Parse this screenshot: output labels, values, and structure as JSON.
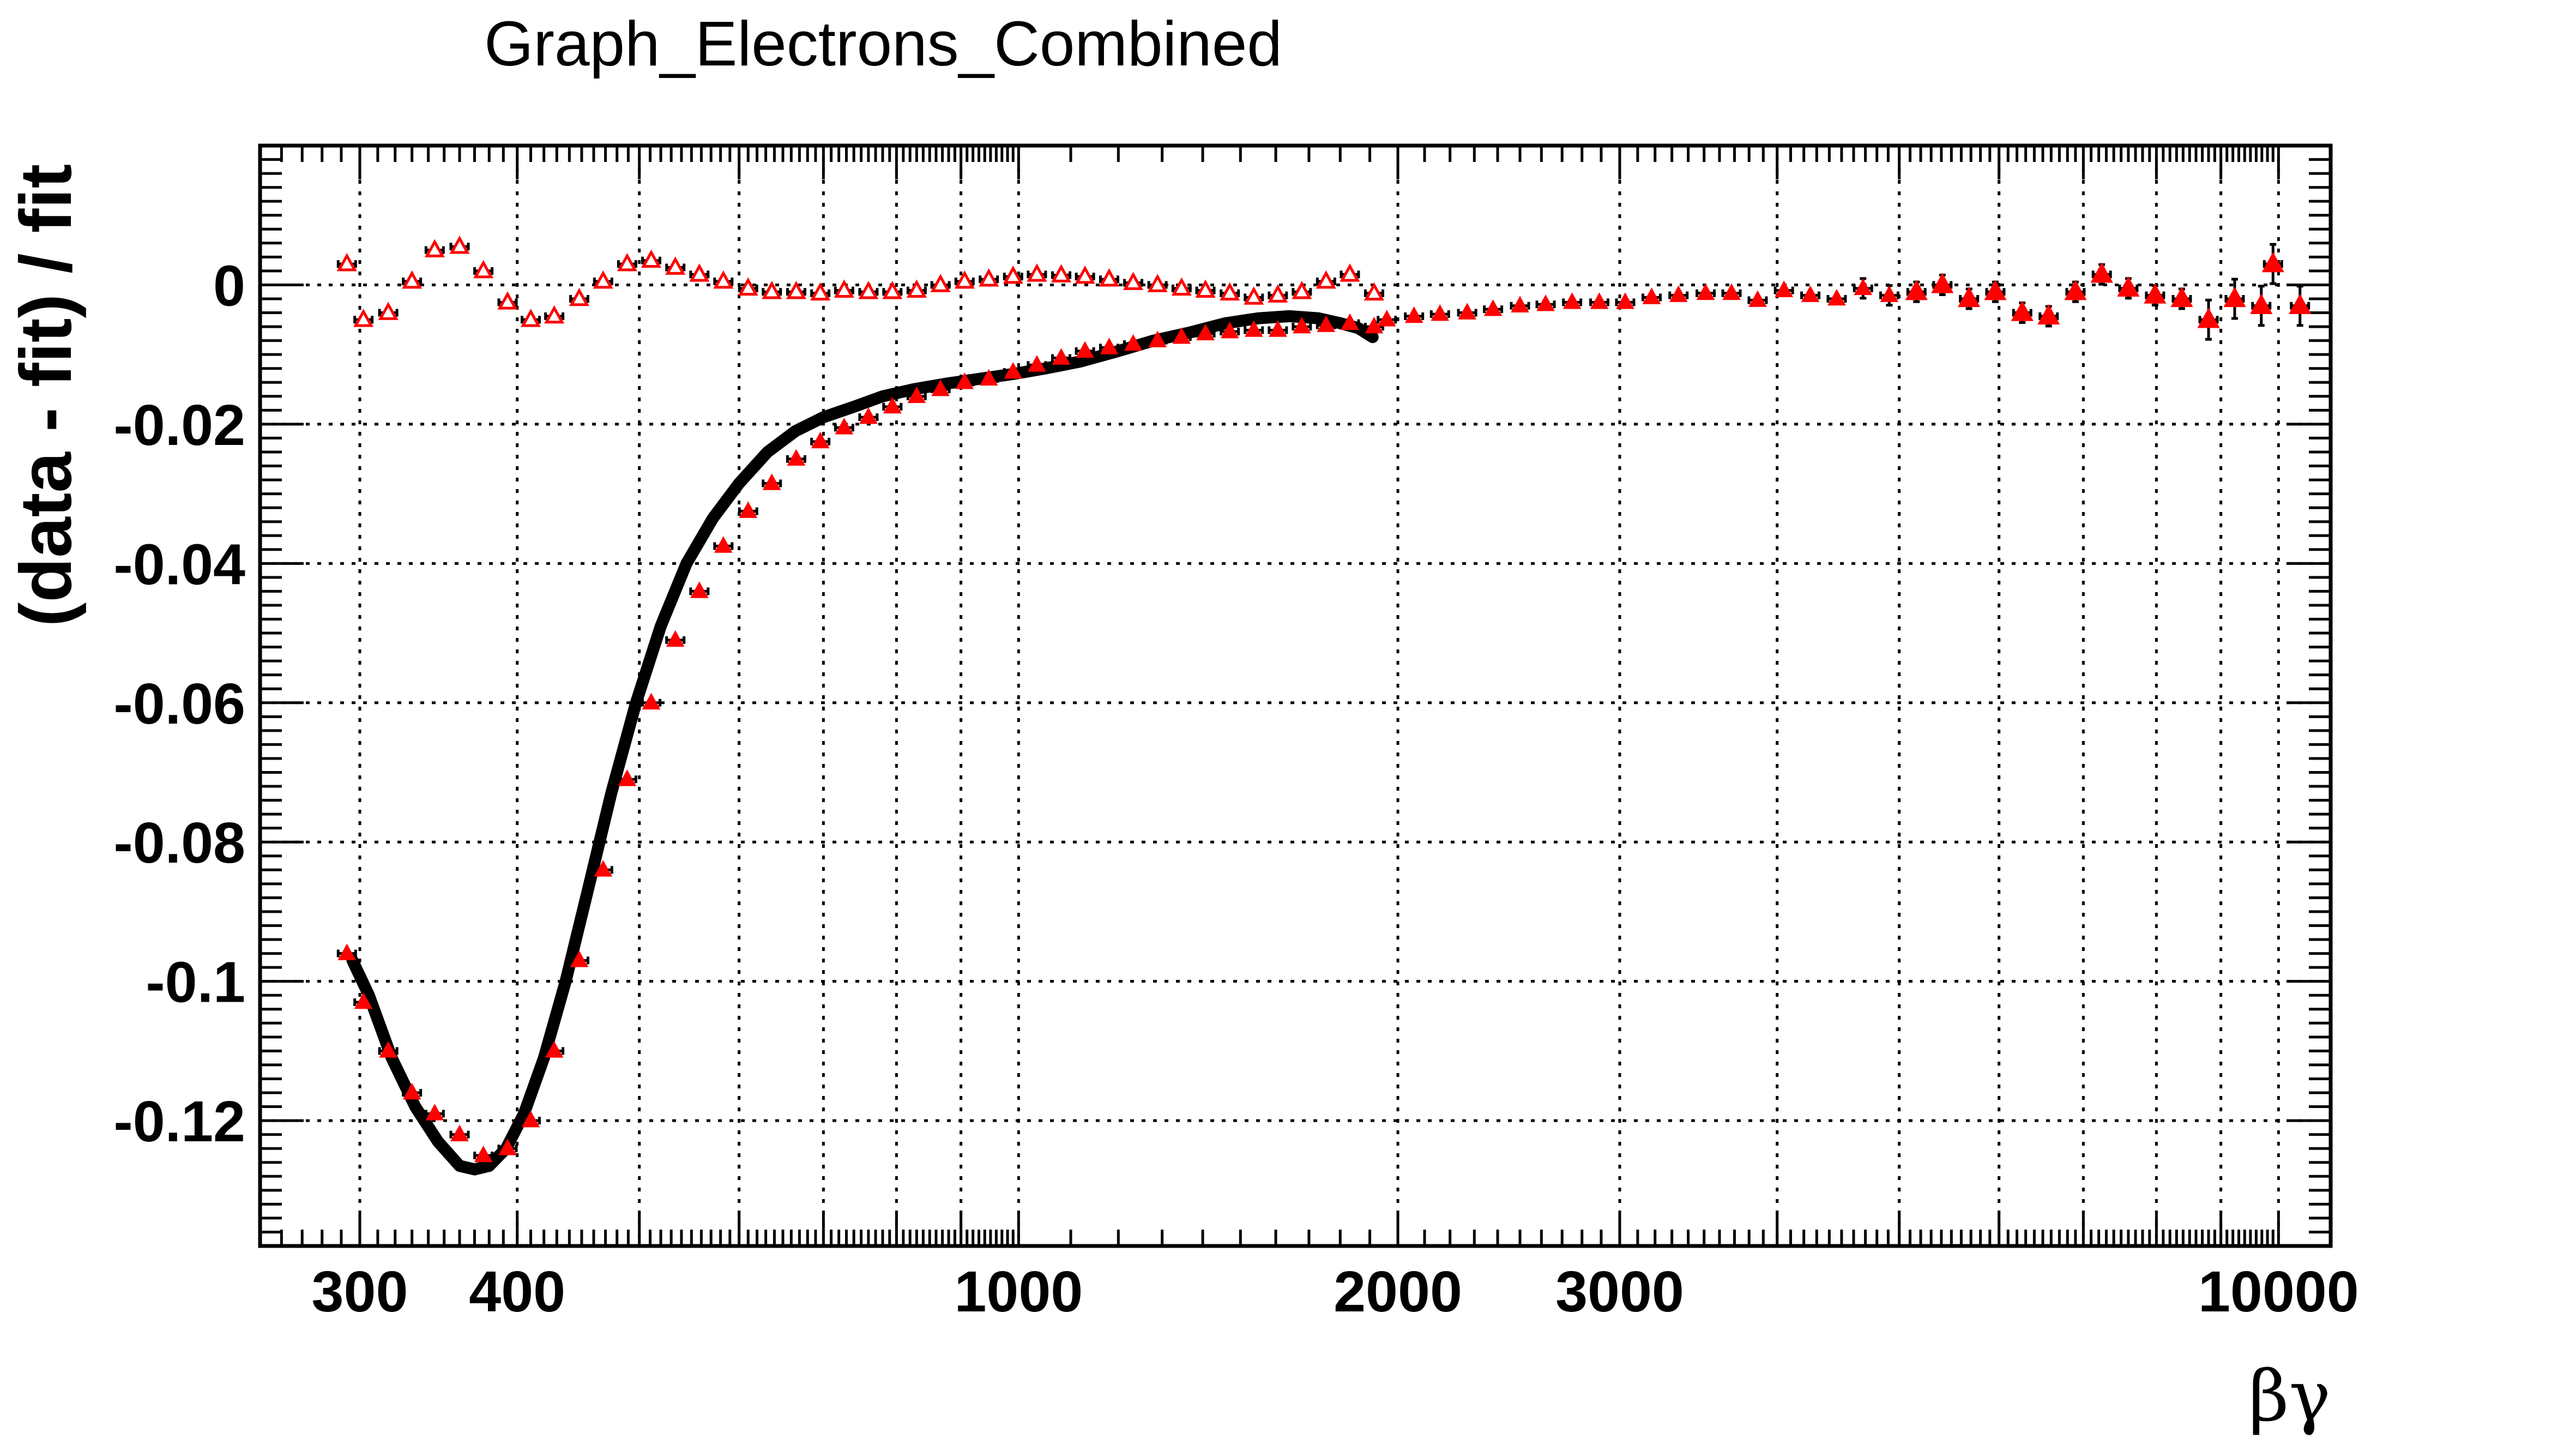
{
  "chart_data": {
    "type": "scatter",
    "title": "Graph_Electrons_Combined",
    "xlabel": "βγ",
    "ylabel": "(data - fit) / fit",
    "xscale": "log",
    "xlim": [
      250,
      11000
    ],
    "ylim": [
      -0.138,
      0.02
    ],
    "grid": true,
    "x_tick_labels": [
      {
        "value": 300,
        "label": "300"
      },
      {
        "value": 400,
        "label": "400"
      },
      {
        "value": 1000,
        "label": "1000"
      },
      {
        "value": 2000,
        "label": "2000"
      },
      {
        "value": 3000,
        "label": "3000"
      },
      {
        "value": 10000,
        "label": "10000"
      }
    ],
    "y_tick_labels": [
      {
        "value": 0,
        "label": "0"
      },
      {
        "value": -0.02,
        "label": "-0.02"
      },
      {
        "value": -0.04,
        "label": "-0.04"
      },
      {
        "value": -0.06,
        "label": "-0.06"
      },
      {
        "value": -0.08,
        "label": "-0.08"
      },
      {
        "value": -0.1,
        "label": "-0.1"
      },
      {
        "value": -0.12,
        "label": "-0.12"
      }
    ],
    "series": [
      {
        "marker": "open-triangle",
        "color": "#ff0000",
        "x": [
          293,
          302,
          316,
          330,
          344,
          360,
          376,
          393,
          410,
          428,
          448,
          468,
          489,
          511,
          534,
          558,
          583,
          610,
          637,
          666,
          696,
          727,
          760,
          794,
          830,
          867,
          906,
          947,
          990,
          1034,
          1081,
          1129,
          1180,
          1233,
          1289,
          1347,
          1407,
          1471,
          1537,
          1606,
          1678,
          1754,
          1832,
          1915
        ],
        "y": [
          0.003,
          -0.005,
          -0.004,
          0.0005,
          0.005,
          0.0055,
          0.002,
          -0.0025,
          -0.005,
          -0.0045,
          -0.002,
          0.0005,
          0.003,
          0.0035,
          0.0025,
          0.0015,
          0.0005,
          -0.0005,
          -0.001,
          -0.001,
          -0.0012,
          -0.0008,
          -0.001,
          -0.001,
          -0.0008,
          0.0,
          0.0005,
          0.0008,
          0.0012,
          0.0015,
          0.0014,
          0.0012,
          0.0008,
          0.0003,
          0.0,
          -0.0005,
          -0.0008,
          -0.0012,
          -0.0018,
          -0.0015,
          -0.001,
          0.0005,
          0.0015,
          -0.0012
        ]
      },
      {
        "marker": "filled-triangle",
        "color": "#ff0000",
        "x": [
          293,
          302,
          316,
          330,
          344,
          360,
          376,
          393,
          410,
          428,
          448,
          468,
          489,
          511,
          534,
          558,
          583,
          610,
          637,
          666,
          696,
          727,
          760,
          794,
          830,
          867,
          906,
          947,
          990,
          1034,
          1081,
          1129,
          1180,
          1233,
          1289,
          1347,
          1407,
          1471,
          1537,
          1606,
          1678,
          1754,
          1832,
          1915
        ],
        "y": [
          -0.096,
          -0.103,
          -0.11,
          -0.116,
          -0.119,
          -0.122,
          -0.125,
          -0.124,
          -0.12,
          -0.11,
          -0.097,
          -0.084,
          -0.071,
          -0.06,
          -0.051,
          -0.044,
          -0.0375,
          -0.0325,
          -0.0285,
          -0.025,
          -0.0225,
          -0.0205,
          -0.019,
          -0.0175,
          -0.016,
          -0.015,
          -0.014,
          -0.0135,
          -0.0125,
          -0.0115,
          -0.0105,
          -0.0095,
          -0.009,
          -0.0085,
          -0.008,
          -0.0075,
          -0.007,
          -0.0067,
          -0.0065,
          -0.0065,
          -0.006,
          -0.0058,
          -0.0055,
          -0.006
        ]
      },
      {
        "marker": "filled-triangle",
        "color": "#ff0000",
        "x": [
          1960,
          2060,
          2160,
          2270,
          2380,
          2500,
          2620,
          2750,
          2890,
          3030,
          3180,
          3340,
          3510,
          3680,
          3860,
          4050,
          4250,
          4460,
          4680,
          4910,
          5160,
          5410,
          5680,
          5960,
          6260,
          6570,
          6900,
          7240,
          7600,
          7980,
          8380,
          8800,
          9230,
          9690
        ],
        "y": [
          -0.005,
          -0.0045,
          -0.0042,
          -0.004,
          -0.0035,
          -0.003,
          -0.0028,
          -0.0025,
          -0.0025,
          -0.0025,
          -0.0018,
          -0.0015,
          -0.0012,
          -0.0012,
          -0.0022,
          -0.0008,
          -0.0015,
          -0.002,
          -0.0005,
          -0.0015,
          -0.001,
          0.0,
          -0.002,
          -0.001,
          -0.004,
          -0.0045,
          -0.001,
          0.0015,
          -0.0005,
          -0.0015,
          -0.002,
          -0.005,
          -0.002,
          -0.003
        ]
      },
      {
        "marker": "filled-triangle",
        "color": "#ff0000",
        "x": [
          9900,
          10400
        ],
        "y": [
          0.003,
          -0.003
        ]
      }
    ],
    "fit_curve": {
      "color": "#000000",
      "x": [
        296,
        305,
        318,
        332,
        346,
        360,
        370,
        380,
        392,
        405,
        420,
        437,
        455,
        475,
        497,
        520,
        545,
        572,
        600,
        632,
        665,
        700,
        740,
        780,
        825,
        875,
        930,
        990,
        1050,
        1120,
        1200,
        1280,
        1370,
        1460,
        1550,
        1640,
        1730,
        1800,
        1860,
        1910
      ],
      "y": [
        -0.097,
        -0.102,
        -0.111,
        -0.118,
        -0.123,
        -0.1265,
        -0.127,
        -0.1265,
        -0.124,
        -0.119,
        -0.111,
        -0.1,
        -0.087,
        -0.073,
        -0.06,
        -0.049,
        -0.04,
        -0.0335,
        -0.0285,
        -0.024,
        -0.021,
        -0.019,
        -0.0175,
        -0.016,
        -0.015,
        -0.0142,
        -0.0135,
        -0.0128,
        -0.012,
        -0.011,
        -0.0095,
        -0.008,
        -0.0068,
        -0.0055,
        -0.0048,
        -0.0045,
        -0.0048,
        -0.0055,
        -0.0062,
        -0.0075
      ]
    }
  }
}
